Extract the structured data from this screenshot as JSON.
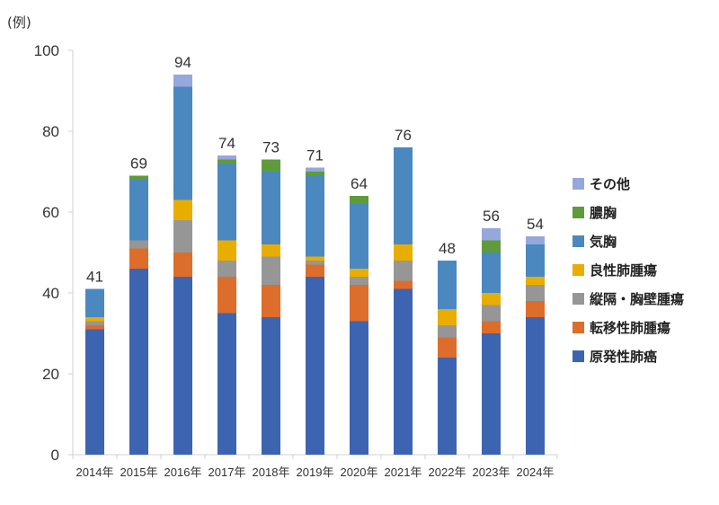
{
  "chart_data": {
    "type": "bar",
    "stacked": true,
    "title": "",
    "xlabel": "",
    "ylabel": "(例)",
    "ylim": [
      0,
      100
    ],
    "yticks": [
      0,
      20,
      40,
      60,
      80,
      100
    ],
    "grid": false,
    "legend_position": "right",
    "categories": [
      "2014年",
      "2015年",
      "2016年",
      "2017年",
      "2018年",
      "2019年",
      "2020年",
      "2021年",
      "2022年",
      "2023年",
      "2024年"
    ],
    "totals": [
      41,
      69,
      94,
      74,
      73,
      71,
      64,
      76,
      48,
      56,
      54
    ],
    "series": [
      {
        "name": "原発性肺癌",
        "color": "#3d64b0",
        "values": [
          31,
          46,
          44,
          35,
          34,
          44,
          33,
          41,
          24,
          30,
          34
        ]
      },
      {
        "name": "転移性肺腫瘍",
        "color": "#dd6d2a",
        "values": [
          1,
          5,
          6,
          9,
          8,
          3,
          9,
          2,
          5,
          3,
          4
        ]
      },
      {
        "name": "縦隔・胸壁腫瘍",
        "color": "#969696",
        "values": [
          1,
          2,
          8,
          4,
          7,
          1,
          2,
          5,
          3,
          4,
          4
        ]
      },
      {
        "name": "良性肺腫瘍",
        "color": "#e9ad00",
        "values": [
          1,
          0,
          5,
          5,
          3,
          1,
          2,
          4,
          4,
          3,
          2
        ]
      },
      {
        "name": "気胸",
        "color": "#4b88bf",
        "values": [
          7,
          15,
          28,
          19,
          18,
          20,
          16,
          24,
          12,
          10,
          8
        ]
      },
      {
        "name": "膿胸",
        "color": "#5f9b3a",
        "values": [
          0,
          1,
          0,
          1,
          3,
          1,
          2,
          0,
          0,
          3,
          0
        ]
      },
      {
        "name": "その他",
        "color": "#96a7dc",
        "values": [
          0,
          0,
          3,
          1,
          0,
          1,
          0,
          0,
          0,
          3,
          2
        ]
      }
    ],
    "legend_order": [
      "その他",
      "膿胸",
      "気胸",
      "良性肺腫瘍",
      "縦隔・胸壁腫瘍",
      "転移性肺腫瘍",
      "原発性肺癌"
    ]
  }
}
